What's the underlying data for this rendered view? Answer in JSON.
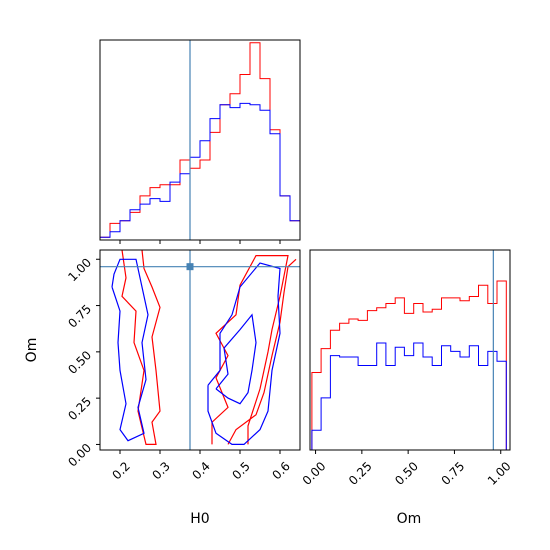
{
  "chart_data": {
    "type": "corner",
    "colors": {
      "red": "#ff0000",
      "blue": "#0000ff",
      "truth": "#4682b4"
    },
    "parameters": [
      "H0",
      "Om"
    ],
    "truths": {
      "H0": 0.375,
      "Om": 0.96
    },
    "h0_range": [
      0.15,
      0.65
    ],
    "om_range": [
      -0.03,
      1.05
    ],
    "h0_ticks": [
      "0.2",
      "0.3",
      "0.4",
      "0.5",
      "0.6"
    ],
    "om_ticks": [
      "0.00",
      "0.25",
      "0.50",
      "0.75",
      "1.00"
    ],
    "xlabel_h0": "H0",
    "xlabel_om": "Om",
    "ylabel_om": "Om",
    "h0_hist": {
      "edges": [
        0.15,
        0.175,
        0.2,
        0.225,
        0.25,
        0.275,
        0.3,
        0.325,
        0.35,
        0.375,
        0.4,
        0.425,
        0.45,
        0.475,
        0.5,
        0.525,
        0.55,
        0.575,
        0.6,
        0.625,
        0.65
      ],
      "series": [
        {
          "color": "red",
          "values": [
            2,
            12,
            14,
            20,
            32,
            38,
            40,
            40,
            58,
            52,
            58,
            78,
            98,
            106,
            120,
            143,
            117,
            80,
            32,
            14
          ]
        },
        {
          "color": "blue",
          "values": [
            2,
            6,
            14,
            22,
            26,
            30,
            28,
            42,
            48,
            60,
            72,
            88,
            98,
            96,
            99,
            98,
            94,
            77,
            32,
            14
          ]
        }
      ],
      "ylim": [
        0,
        145
      ]
    },
    "om_hist": {
      "edges": [
        -0.02,
        0.03,
        0.08,
        0.13,
        0.18,
        0.23,
        0.28,
        0.33,
        0.38,
        0.43,
        0.48,
        0.53,
        0.58,
        0.63,
        0.68,
        0.73,
        0.78,
        0.83,
        0.88,
        0.93,
        0.98,
        1.03
      ],
      "series": [
        {
          "color": "red",
          "values": [
            0.55,
            0.72,
            0.85,
            0.9,
            0.93,
            0.92,
            0.99,
            1.01,
            1.04,
            1.08,
            0.97,
            1.04,
            0.98,
            1.0,
            1.08,
            1.08,
            1.06,
            1.09,
            1.17,
            1.04,
            1.2
          ]
        },
        {
          "color": "blue",
          "values": [
            0.14,
            0.37,
            0.67,
            0.66,
            0.66,
            0.6,
            0.6,
            0.76,
            0.6,
            0.73,
            0.67,
            0.76,
            0.66,
            0.6,
            0.74,
            0.7,
            0.66,
            0.74,
            0.6,
            0.7,
            0.63
          ]
        }
      ],
      "ylim": [
        0,
        1.42
      ]
    },
    "contours": [
      {
        "color": "red",
        "points": [
          [
            0.205,
            1.05
          ],
          [
            0.215,
            0.9
          ],
          [
            0.205,
            0.8
          ],
          [
            0.24,
            0.72
          ],
          [
            0.235,
            0.55
          ],
          [
            0.26,
            0.4
          ],
          [
            0.245,
            0.18
          ],
          [
            0.265,
            0.0
          ],
          [
            0.29,
            0.0
          ],
          [
            0.28,
            0.12
          ],
          [
            0.3,
            0.18
          ],
          [
            0.29,
            0.4
          ],
          [
            0.28,
            0.58
          ],
          [
            0.3,
            0.74
          ],
          [
            0.28,
            0.85
          ],
          [
            0.26,
            0.95
          ],
          [
            0.255,
            1.05
          ]
        ]
      },
      {
        "color": "red",
        "points": [
          [
            0.43,
            0.0
          ],
          [
            0.43,
            0.12
          ],
          [
            0.47,
            0.2
          ],
          [
            0.44,
            0.36
          ],
          [
            0.47,
            0.48
          ],
          [
            0.44,
            0.6
          ],
          [
            0.49,
            0.7
          ],
          [
            0.5,
            0.86
          ],
          [
            0.54,
            1.02
          ],
          [
            0.62,
            1.02
          ],
          [
            0.6,
            0.8
          ],
          [
            0.58,
            0.62
          ],
          [
            0.57,
            0.5
          ],
          [
            0.55,
            0.3
          ],
          [
            0.52,
            0.1
          ],
          [
            0.52,
            0.0
          ]
        ]
      },
      {
        "color": "red",
        "points": [
          [
            0.47,
            0.0
          ],
          [
            0.49,
            0.08
          ],
          [
            0.54,
            0.16
          ],
          [
            0.56,
            0.28
          ],
          [
            0.58,
            0.48
          ],
          [
            0.6,
            0.66
          ],
          [
            0.61,
            0.82
          ],
          [
            0.62,
            0.96
          ],
          [
            0.64,
            1.0
          ]
        ]
      },
      {
        "color": "blue",
        "points": [
          [
            0.18,
            0.85
          ],
          [
            0.2,
            0.72
          ],
          [
            0.195,
            0.55
          ],
          [
            0.2,
            0.4
          ],
          [
            0.215,
            0.22
          ],
          [
            0.2,
            0.08
          ],
          [
            0.22,
            0.02
          ],
          [
            0.26,
            0.06
          ],
          [
            0.245,
            0.2
          ],
          [
            0.265,
            0.35
          ],
          [
            0.255,
            0.55
          ],
          [
            0.27,
            0.7
          ],
          [
            0.255,
            0.85
          ],
          [
            0.24,
            1.0
          ],
          [
            0.2,
            1.0
          ],
          [
            0.185,
            0.92
          ],
          [
            0.18,
            0.85
          ]
        ]
      },
      {
        "color": "blue",
        "points": [
          [
            0.42,
            0.32
          ],
          [
            0.45,
            0.4
          ],
          [
            0.45,
            0.6
          ],
          [
            0.48,
            0.7
          ],
          [
            0.5,
            0.85
          ],
          [
            0.55,
            0.98
          ],
          [
            0.6,
            0.95
          ],
          [
            0.595,
            0.8
          ],
          [
            0.6,
            0.6
          ],
          [
            0.58,
            0.4
          ],
          [
            0.57,
            0.18
          ],
          [
            0.55,
            0.08
          ],
          [
            0.51,
            0.0
          ],
          [
            0.48,
            0.0
          ],
          [
            0.44,
            0.06
          ],
          [
            0.42,
            0.18
          ],
          [
            0.42,
            0.32
          ]
        ]
      },
      {
        "color": "blue",
        "points": [
          [
            0.44,
            0.3
          ],
          [
            0.47,
            0.38
          ],
          [
            0.46,
            0.52
          ],
          [
            0.5,
            0.62
          ],
          [
            0.53,
            0.7
          ],
          [
            0.54,
            0.55
          ],
          [
            0.53,
            0.4
          ],
          [
            0.52,
            0.28
          ],
          [
            0.5,
            0.22
          ],
          [
            0.47,
            0.25
          ],
          [
            0.44,
            0.3
          ]
        ]
      }
    ]
  }
}
